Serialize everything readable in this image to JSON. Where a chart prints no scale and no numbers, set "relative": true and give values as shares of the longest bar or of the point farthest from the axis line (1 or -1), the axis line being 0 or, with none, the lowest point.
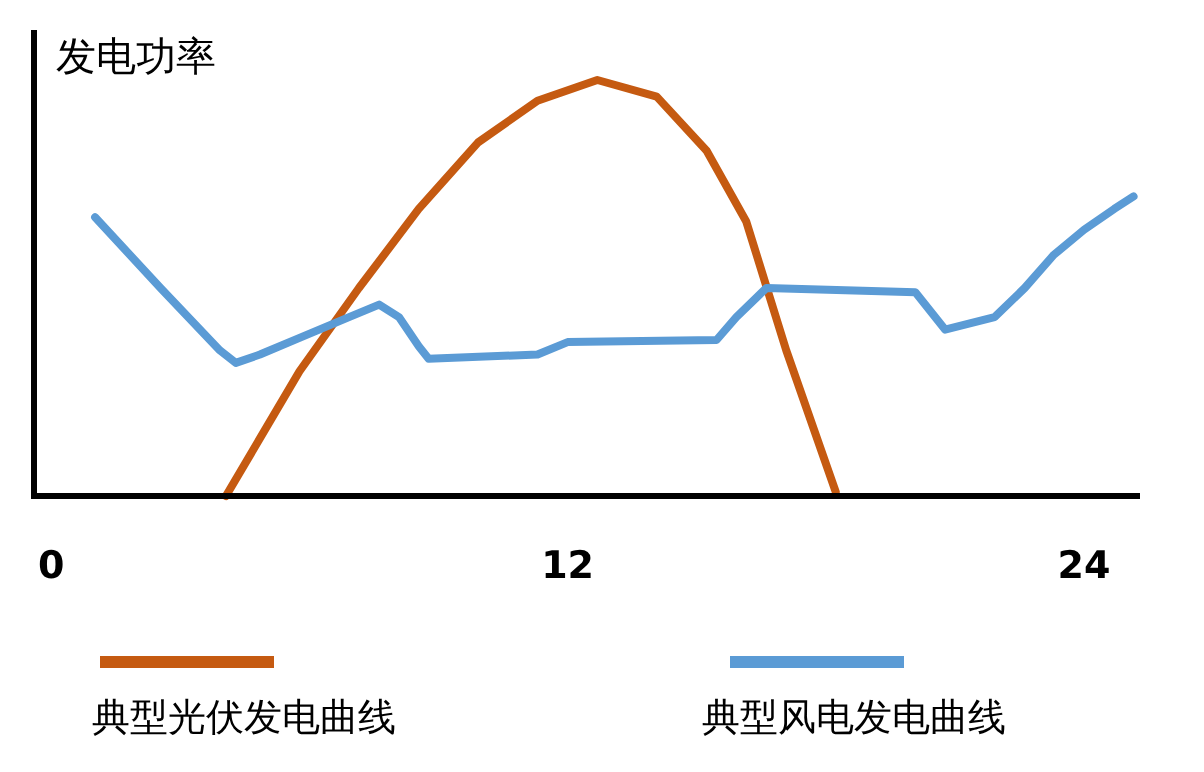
{
  "chart_data": {
    "type": "line",
    "relative": true,
    "ylabel": "发电功率",
    "xlim": [
      -0.4,
      25.3
    ],
    "xticks": [
      0,
      12,
      24
    ],
    "legend": "bottom",
    "grid": false,
    "marker": "none",
    "line_style": "solid",
    "series": [
      {
        "name": "典型光伏发电曲线",
        "color": "#c55a11",
        "x": [
          4.06,
          5.77,
          7.15,
          8.54,
          9.92,
          11.3,
          12.69,
          14.07,
          15.23,
          16.15,
          17.08,
          18.23
        ],
        "values": [
          0,
          0.3,
          0.5,
          0.69,
          0.85,
          0.95,
          1,
          0.96,
          0.83,
          0.66,
          0.35,
          0.01
        ]
      },
      {
        "name": "典型风电发电曲线",
        "color": "#5b9bd5",
        "x": [
          1.02,
          2.54,
          3.92,
          4.29,
          4.85,
          5.77,
          6.92,
          7.62,
          8.08,
          8.54,
          8.77,
          11.3,
          12.0,
          15.46,
          15.92,
          16.62,
          20.08,
          20.77,
          21.92,
          22.62,
          23.3,
          24.0,
          24.7,
          25.15
        ],
        "values": [
          0.67,
          0.5,
          0.35,
          0.32,
          0.34,
          0.38,
          0.43,
          0.46,
          0.43,
          0.36,
          0.33,
          0.34,
          0.37,
          0.375,
          0.43,
          0.5,
          0.49,
          0.4,
          0.43,
          0.5,
          0.58,
          0.64,
          0.69,
          0.72
        ]
      }
    ]
  }
}
